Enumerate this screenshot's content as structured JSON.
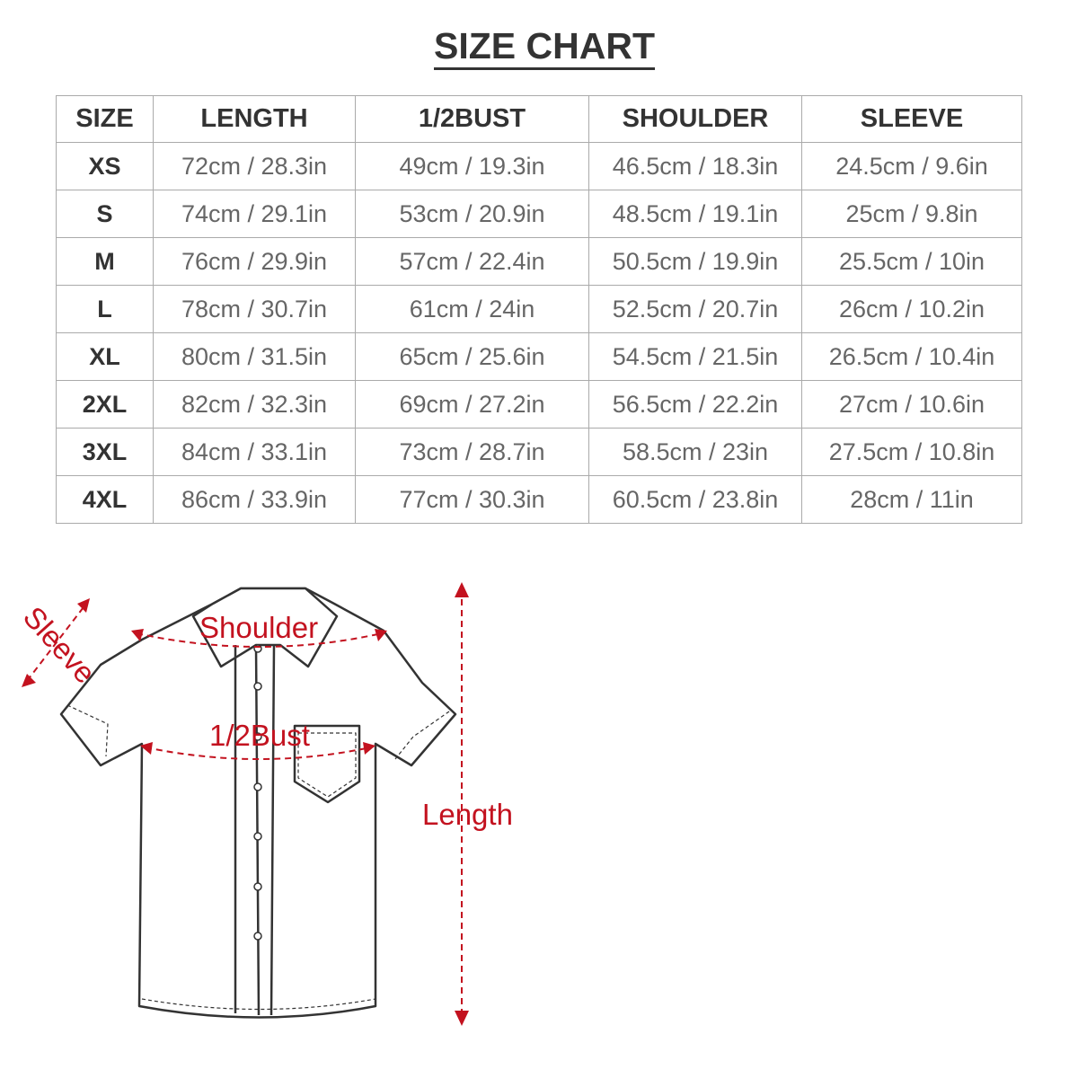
{
  "title": "SIZE CHART",
  "table": {
    "headers": [
      "SIZE",
      "LENGTH",
      "1/2BUST",
      "SHOULDER",
      "SLEEVE"
    ],
    "rows": [
      [
        "XS",
        "72cm / 28.3in",
        "49cm / 19.3in",
        "46.5cm / 18.3in",
        "24.5cm / 9.6in"
      ],
      [
        "S",
        "74cm / 29.1in",
        "53cm / 20.9in",
        "48.5cm / 19.1in",
        "25cm / 9.8in"
      ],
      [
        "M",
        "76cm / 29.9in",
        "57cm / 22.4in",
        "50.5cm / 19.9in",
        "25.5cm / 10in"
      ],
      [
        "L",
        "78cm / 30.7in",
        "61cm / 24in",
        "52.5cm / 20.7in",
        "26cm / 10.2in"
      ],
      [
        "XL",
        "80cm / 31.5in",
        "65cm / 25.6in",
        "54.5cm / 21.5in",
        "26.5cm / 10.4in"
      ],
      [
        "2XL",
        "82cm / 32.3in",
        "69cm / 27.2in",
        "56.5cm / 22.2in",
        "27cm / 10.6in"
      ],
      [
        "3XL",
        "84cm / 33.1in",
        "73cm / 28.7in",
        "58.5cm / 23in",
        "27.5cm / 10.8in"
      ],
      [
        "4XL",
        "86cm / 33.9in",
        "77cm / 30.3in",
        "60.5cm / 23.8in",
        "28cm / 11in"
      ]
    ]
  },
  "diagram": {
    "labels": {
      "sleeve": "Sleeve",
      "shoulder": "Shoulder",
      "bust": "1/2Bust",
      "length": "Length"
    },
    "accent_color": "#c3121f"
  }
}
